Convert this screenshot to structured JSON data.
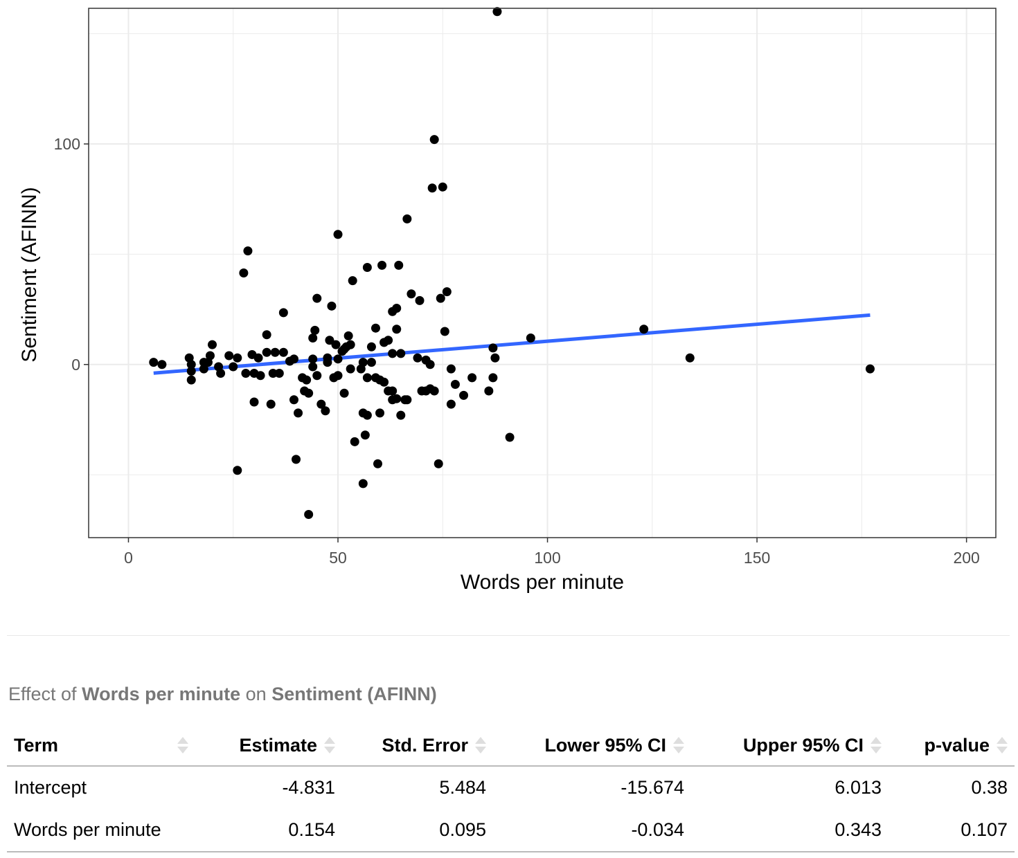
{
  "chart_data": {
    "type": "scatter",
    "xlabel": "Words per minute",
    "ylabel": "Sentiment (AFINN)",
    "xlim": [
      -9.5,
      207.0
    ],
    "ylim": [
      -78.5,
      161.5
    ],
    "xticks": [
      0,
      50,
      100,
      150,
      200
    ],
    "xtick_labels": [
      "0",
      "50",
      "100",
      "150",
      "200"
    ],
    "yticks": [
      0,
      100
    ],
    "ytick_labels": [
      "0",
      "100"
    ],
    "grid": true,
    "colors": {
      "points": "#000000",
      "line": "#3366ff",
      "grid": "#ebebeb",
      "panel_border": "#333333",
      "axis_text": "#4d4d4d"
    },
    "points": [
      [
        88,
        160
      ],
      [
        73,
        102
      ],
      [
        72.5,
        80
      ],
      [
        75,
        80.5
      ],
      [
        66.5,
        66
      ],
      [
        50,
        59
      ],
      [
        28.5,
        51.5
      ],
      [
        27.5,
        41.5
      ],
      [
        60.5,
        45
      ],
      [
        64.5,
        45
      ],
      [
        57,
        44
      ],
      [
        53.5,
        38
      ],
      [
        45,
        30
      ],
      [
        67.5,
        32
      ],
      [
        69.5,
        29
      ],
      [
        74.5,
        30
      ],
      [
        76,
        33
      ],
      [
        48.5,
        26.5
      ],
      [
        64,
        25.5
      ],
      [
        63,
        24
      ],
      [
        37,
        23.5
      ],
      [
        96,
        12
      ],
      [
        123,
        16
      ],
      [
        134,
        3
      ],
      [
        177,
        -2
      ],
      [
        44.5,
        15.5
      ],
      [
        44,
        12
      ],
      [
        59,
        16.5
      ],
      [
        64,
        16
      ],
      [
        75.5,
        15
      ],
      [
        33,
        13.5
      ],
      [
        52.5,
        13
      ],
      [
        62,
        11
      ],
      [
        61,
        10
      ],
      [
        48,
        11
      ],
      [
        49.5,
        9
      ],
      [
        58,
        8
      ],
      [
        87,
        7.5
      ],
      [
        20,
        9
      ],
      [
        53,
        9
      ],
      [
        52,
        8
      ],
      [
        51.5,
        7
      ],
      [
        51,
        6
      ],
      [
        63,
        5
      ],
      [
        65,
        5
      ],
      [
        33,
        5.5
      ],
      [
        35,
        5.5
      ],
      [
        37,
        5.5
      ],
      [
        24,
        4
      ],
      [
        29.5,
        4.5
      ],
      [
        19.5,
        4
      ],
      [
        14.5,
        3
      ],
      [
        26,
        3
      ],
      [
        31,
        3
      ],
      [
        39.5,
        2.5
      ],
      [
        44,
        2.5
      ],
      [
        47.5,
        3
      ],
      [
        50,
        2.5
      ],
      [
        69,
        3
      ],
      [
        71,
        2
      ],
      [
        87.5,
        3
      ],
      [
        6,
        1
      ],
      [
        8,
        0
      ],
      [
        15,
        0
      ],
      [
        18,
        1
      ],
      [
        19,
        1
      ],
      [
        21.5,
        -1
      ],
      [
        25,
        -1
      ],
      [
        38.5,
        1.5
      ],
      [
        44,
        -1
      ],
      [
        47.5,
        1
      ],
      [
        56,
        1
      ],
      [
        58,
        1
      ],
      [
        72,
        0
      ],
      [
        77,
        -2
      ],
      [
        15,
        -3
      ],
      [
        18,
        -2
      ],
      [
        22,
        -4
      ],
      [
        28,
        -4
      ],
      [
        30,
        -4
      ],
      [
        31.5,
        -5
      ],
      [
        34.5,
        -4
      ],
      [
        36,
        -4
      ],
      [
        41.5,
        -6
      ],
      [
        42.5,
        -7
      ],
      [
        45,
        -5
      ],
      [
        49,
        -6
      ],
      [
        50,
        -5
      ],
      [
        53,
        -2
      ],
      [
        55.5,
        -2
      ],
      [
        57,
        -6
      ],
      [
        59,
        -6
      ],
      [
        60,
        -7
      ],
      [
        61,
        -8
      ],
      [
        62,
        -12
      ],
      [
        63,
        -12
      ],
      [
        66,
        -16
      ],
      [
        70,
        -12
      ],
      [
        71,
        -12
      ],
      [
        72,
        -11
      ],
      [
        73,
        -12
      ],
      [
        78,
        -9
      ],
      [
        80,
        -14
      ],
      [
        82,
        -6
      ],
      [
        86,
        -12
      ],
      [
        87,
        -6
      ],
      [
        15,
        -7
      ],
      [
        30,
        -17
      ],
      [
        34,
        -18
      ],
      [
        39.5,
        -16
      ],
      [
        42,
        -12
      ],
      [
        43,
        -13
      ],
      [
        46,
        -18
      ],
      [
        47,
        -21
      ],
      [
        51.5,
        -13
      ],
      [
        56,
        -22
      ],
      [
        57,
        -23
      ],
      [
        60,
        -22
      ],
      [
        63,
        -16
      ],
      [
        64,
        -15.5
      ],
      [
        65,
        -23
      ],
      [
        66.5,
        -16
      ],
      [
        77,
        -18
      ],
      [
        40.5,
        -22
      ],
      [
        54,
        -35
      ],
      [
        56.5,
        -32
      ],
      [
        59.5,
        -45
      ],
      [
        74,
        -45
      ],
      [
        91,
        -33
      ],
      [
        26,
        -48
      ],
      [
        40,
        -43
      ],
      [
        56,
        -54
      ],
      [
        43,
        -68
      ]
    ],
    "fit_line": {
      "x": [
        6,
        177
      ],
      "y": [
        -3.9,
        22.4
      ]
    }
  },
  "table": {
    "caption_prefix": "Effect of",
    "caption_x": "Words per minute",
    "caption_mid": "on",
    "caption_y": "Sentiment (AFINN)",
    "headers": {
      "term": "Term",
      "estimate": "Estimate",
      "std_error": "Std. Error",
      "lower": "Lower 95% CI",
      "upper": "Upper 95% CI",
      "pvalue": "p-value"
    },
    "rows": [
      {
        "term": "Intercept",
        "estimate": "-4.831",
        "std_error": "5.484",
        "lower": "-15.674",
        "upper": "6.013",
        "pvalue": "0.38"
      },
      {
        "term": "Words per minute",
        "estimate": "0.154",
        "std_error": "0.095",
        "lower": "-0.034",
        "upper": "0.343",
        "pvalue": "0.107"
      }
    ]
  }
}
